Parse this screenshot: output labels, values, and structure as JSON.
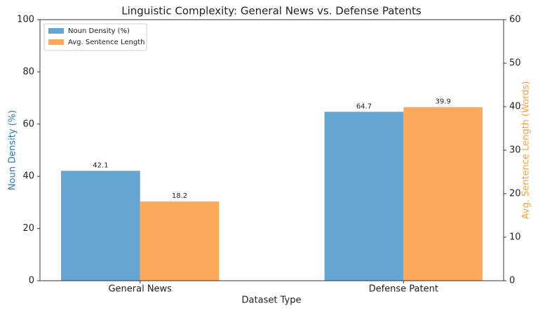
{
  "chart_data": {
    "type": "bar",
    "title": "Linguistic Complexity: General News vs. Defense Patents",
    "xlabel": "Dataset Type",
    "ylabel": "Noun Density (%)",
    "y2label": "Avg. Sentence Length (Words)",
    "categories": [
      "General News",
      "Defense Patent"
    ],
    "series": [
      {
        "name": "Noun Density (%)",
        "color": "#64a5d2",
        "values": [
          42.1,
          64.7
        ],
        "axis": "y"
      },
      {
        "name": "Avg. Sentence Length",
        "color": "#fba95a",
        "values": [
          18.2,
          39.9
        ],
        "axis": "y2"
      }
    ],
    "ylim": [
      0,
      100
    ],
    "yticks": [
      0,
      20,
      40,
      60,
      80,
      100
    ],
    "y2lim": [
      0,
      60
    ],
    "y2ticks": [
      0,
      10,
      20,
      30,
      40,
      50,
      60
    ],
    "ycolor": "#2a7ab8",
    "y2color": "#f5a048",
    "legend": "upper-left"
  }
}
